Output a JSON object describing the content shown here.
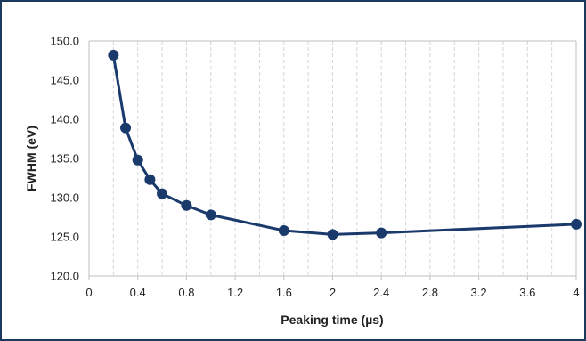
{
  "chart_data": {
    "type": "line",
    "xlabel": "Peaking time (µs)",
    "ylabel": "FWHM (eV)",
    "xlim": [
      0,
      4
    ],
    "ylim": [
      120,
      150
    ],
    "x_ticks": [
      "0",
      "0.4",
      "0.8",
      "1.2",
      "1.6",
      "2",
      "2.4",
      "2.8",
      "3.2",
      "3.6",
      "4"
    ],
    "y_ticks": [
      "150.0",
      "145.0",
      "140.0",
      "135.0",
      "130.0",
      "125.0",
      "120.0"
    ],
    "x_tick_values": [
      0,
      0.4,
      0.8,
      1.2,
      1.6,
      2,
      2.4,
      2.8,
      3.2,
      3.6,
      4
    ],
    "y_tick_values": [
      150,
      145,
      140,
      135,
      130,
      125,
      120
    ],
    "series": [
      {
        "x": [
          0.2,
          0.3,
          0.4,
          0.5,
          0.6,
          0.8,
          1.0,
          1.6,
          2.0,
          2.4,
          4.0
        ],
        "values": [
          148.2,
          138.9,
          134.8,
          132.3,
          130.5,
          129.0,
          127.8,
          125.8,
          125.3,
          125.5,
          126.6
        ]
      }
    ],
    "grid": "vertical dashed minor gridlines",
    "line_color": "#1a3a6b"
  }
}
